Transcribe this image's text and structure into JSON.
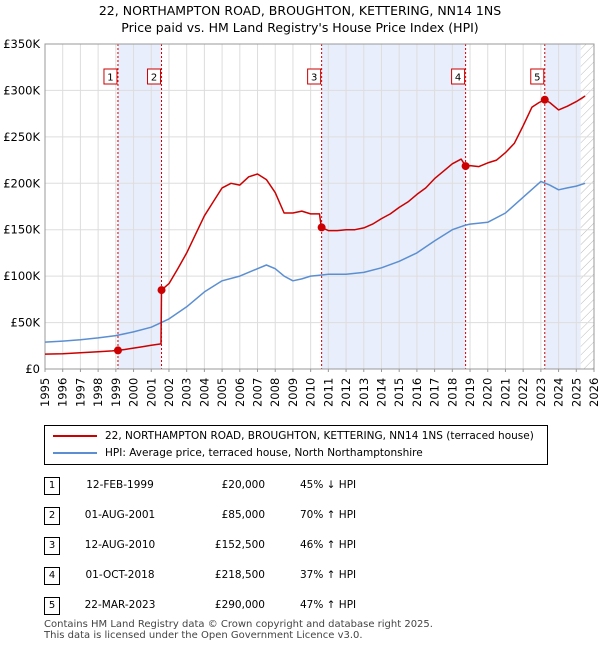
{
  "title_line1": "22, NORTHAMPTON ROAD, BROUGHTON, KETTERING, NN14 1NS",
  "title_line2": "Price paid vs. HM Land Registry's House Price Index (HPI)",
  "chart_data": {
    "type": "line",
    "xlim": [
      1995,
      2026
    ],
    "ylim": [
      0,
      350000
    ],
    "y_ticks": [
      {
        "value": 0,
        "label": "£0"
      },
      {
        "value": 50000,
        "label": "£50K"
      },
      {
        "value": 100000,
        "label": "£100K"
      },
      {
        "value": 150000,
        "label": "£150K"
      },
      {
        "value": 200000,
        "label": "£200K"
      },
      {
        "value": 250000,
        "label": "£250K"
      },
      {
        "value": 300000,
        "label": "£300K"
      },
      {
        "value": 350000,
        "label": "£350K"
      }
    ],
    "x_ticks": [
      "1995",
      "1996",
      "1997",
      "1998",
      "1999",
      "2000",
      "2001",
      "2002",
      "2003",
      "2004",
      "2005",
      "2006",
      "2007",
      "2008",
      "2009",
      "2010",
      "2011",
      "2012",
      "2013",
      "2014",
      "2015",
      "2016",
      "2017",
      "2018",
      "2019",
      "2020",
      "2021",
      "2022",
      "2023",
      "2024",
      "2025",
      "2026"
    ],
    "series": [
      {
        "name": "22, NORTHAMPTON ROAD, BROUGHTON, KETTERING, NN14 1NS (terraced house)",
        "color": "#cc0000",
        "x": [
          1995.0,
          1996.0,
          1997.0,
          1998.0,
          1998.8,
          1999.12,
          1999.5,
          2000.0,
          2000.5,
          2001.0,
          2001.55,
          2001.58,
          2002.0,
          2002.5,
          2003.0,
          2003.5,
          2004.0,
          2004.5,
          2005.0,
          2005.5,
          2006.0,
          2006.5,
          2007.0,
          2007.5,
          2008.0,
          2008.5,
          2009.0,
          2009.5,
          2010.0,
          2010.5,
          2010.6,
          2011.0,
          2011.5,
          2012.0,
          2012.5,
          2013.0,
          2013.5,
          2014.0,
          2014.5,
          2015.0,
          2015.5,
          2016.0,
          2016.5,
          2017.0,
          2017.5,
          2018.0,
          2018.5,
          2018.75,
          2019.0,
          2019.5,
          2020.0,
          2020.5,
          2021.0,
          2021.5,
          2022.0,
          2022.5,
          2022.9,
          2023.22,
          2023.5,
          2024.0,
          2024.5,
          2025.0,
          2025.5
        ],
        "y": [
          16000,
          16500,
          17500,
          18500,
          19500,
          20000,
          21000,
          22500,
          24000,
          25500,
          27000,
          85000,
          92000,
          108000,
          125000,
          145000,
          165000,
          180000,
          195000,
          200000,
          198000,
          207000,
          210000,
          204000,
          190000,
          168000,
          168000,
          170000,
          167000,
          167000,
          152500,
          149000,
          149000,
          150000,
          150000,
          152000,
          156000,
          162000,
          167000,
          174000,
          180000,
          188000,
          195000,
          205000,
          213000,
          221000,
          226000,
          218500,
          219000,
          218000,
          222000,
          225000,
          233000,
          243000,
          262000,
          282000,
          287000,
          290000,
          287000,
          279000,
          283000,
          288000,
          294000
        ]
      },
      {
        "name": "HPI: Average price, terraced house, North Northamptonshire",
        "color": "#5b8fd1",
        "x": [
          1995.0,
          1996.0,
          1997.0,
          1998.0,
          1999.0,
          2000.0,
          2001.0,
          2002.0,
          2003.0,
          2004.0,
          2005.0,
          2006.0,
          2007.0,
          2007.5,
          2008.0,
          2008.5,
          2009.0,
          2009.5,
          2010.0,
          2010.5,
          2011.0,
          2012.0,
          2013.0,
          2014.0,
          2015.0,
          2016.0,
          2017.0,
          2018.0,
          2018.75,
          2019.0,
          2020.0,
          2021.0,
          2022.0,
          2023.0,
          2023.5,
          2024.0,
          2024.5,
          2025.0,
          2025.5
        ],
        "y": [
          29000,
          30000,
          31500,
          33500,
          36000,
          40000,
          45000,
          54000,
          67000,
          83000,
          95000,
          100000,
          108000,
          112000,
          108000,
          100000,
          95000,
          97000,
          100000,
          101000,
          102000,
          102000,
          104000,
          109000,
          116000,
          125000,
          138000,
          150000,
          155000,
          156000,
          158000,
          168000,
          185000,
          202000,
          198000,
          193000,
          195000,
          197000,
          200000
        ]
      }
    ],
    "sale_markers": [
      {
        "label": "1",
        "x": 1999.12,
        "y": 20000
      },
      {
        "label": "2",
        "x": 2001.58,
        "y": 85000
      },
      {
        "label": "3",
        "x": 2010.62,
        "y": 152500
      },
      {
        "label": "4",
        "x": 2018.75,
        "y": 218500
      },
      {
        "label": "5",
        "x": 2023.22,
        "y": 290000
      }
    ],
    "shaded_ranges": [
      [
        1999.12,
        2001.58
      ],
      [
        2010.62,
        2018.75
      ],
      [
        2023.22,
        2025.25
      ]
    ],
    "hatched_from": 2025.25
  },
  "legend": {
    "property_label": "22, NORTHAMPTON ROAD, BROUGHTON, KETTERING, NN14 1NS (terraced house)",
    "hpi_label": "HPI: Average price, terraced house, North Northamptonshire",
    "property_color": "#cc0000",
    "hpi_color": "#5b8fd1"
  },
  "sales": [
    {
      "num": "1",
      "date": "12-FEB-1999",
      "price": "£20,000",
      "hpi": "45% ↓ HPI"
    },
    {
      "num": "2",
      "date": "01-AUG-2001",
      "price": "£85,000",
      "hpi": "70% ↑ HPI"
    },
    {
      "num": "3",
      "date": "12-AUG-2010",
      "price": "£152,500",
      "hpi": "46% ↑ HPI"
    },
    {
      "num": "4",
      "date": "01-OCT-2018",
      "price": "£218,500",
      "hpi": "37% ↑ HPI"
    },
    {
      "num": "5",
      "date": "22-MAR-2023",
      "price": "£290,000",
      "hpi": "47% ↑ HPI"
    }
  ],
  "footer_line1": "Contains HM Land Registry data © Crown copyright and database right 2025.",
  "footer_line2": "This data is licensed under the Open Government Licence v3.0."
}
